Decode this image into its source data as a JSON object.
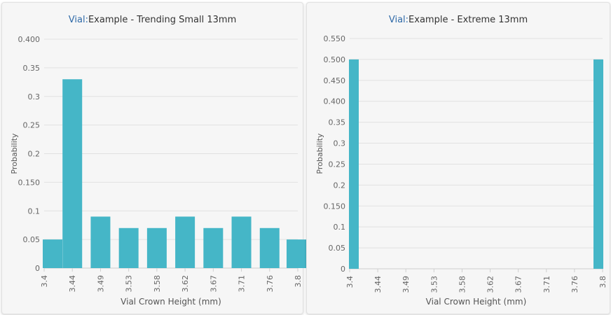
{
  "colors": {
    "bar": "#45b6c7",
    "grid": "#e1e1e1",
    "axis_text": "#666666",
    "title_prefix": "#2f6aa8"
  },
  "chart_data": [
    {
      "type": "bar",
      "title_prefix": "Vial:",
      "title": "Example - Trending Small 13mm",
      "xlabel": "Vial Crown Height (mm)",
      "ylabel": "Probability",
      "x": [
        3.4,
        3.44,
        3.49,
        3.53,
        3.58,
        3.62,
        3.67,
        3.71,
        3.76,
        3.8
      ],
      "x_tick_labels": [
        "3.4",
        "3.44",
        "3.49",
        "3.53",
        "3.58",
        "3.62",
        "3.67",
        "3.71",
        "3.76",
        "3.8"
      ],
      "values": [
        0.05,
        0.33,
        0.09,
        0.07,
        0.07,
        0.09,
        0.07,
        0.09,
        0.07,
        0.05
      ],
      "ylim": [
        0,
        0.4
      ],
      "y_ticks": [
        0,
        0.05,
        0.1,
        0.15,
        0.2,
        0.25,
        0.3,
        0.35,
        0.4
      ],
      "y_tick_labels": [
        "0",
        "0.05",
        "0.1",
        "0.150",
        "0.2",
        "0.25",
        "0.3",
        "0.35",
        "0.400"
      ],
      "grid": true
    },
    {
      "type": "bar",
      "title_prefix": "Vial:",
      "title": "Example - Extreme 13mm",
      "xlabel": "Vial Crown Height (mm)",
      "ylabel": "Probability",
      "x": [
        3.4,
        3.44,
        3.49,
        3.53,
        3.58,
        3.62,
        3.67,
        3.71,
        3.76,
        3.8
      ],
      "x_tick_labels": [
        "3.4",
        "3.44",
        "3.49",
        "3.53",
        "3.58",
        "3.62",
        "3.67",
        "3.71",
        "3.76",
        "3.8"
      ],
      "values": [
        0.5,
        0,
        0,
        0,
        0,
        0,
        0,
        0,
        0,
        0.5
      ],
      "ylim": [
        0,
        0.55
      ],
      "y_ticks": [
        0,
        0.05,
        0.1,
        0.15,
        0.2,
        0.25,
        0.3,
        0.35,
        0.4,
        0.45,
        0.5,
        0.55
      ],
      "y_tick_labels": [
        "0",
        "0.05",
        "0.1",
        "0.150",
        "0.2",
        "0.25",
        "0.3",
        "0.35",
        "0.400",
        "0.450",
        "0.500",
        "0.550"
      ],
      "grid": true
    }
  ]
}
